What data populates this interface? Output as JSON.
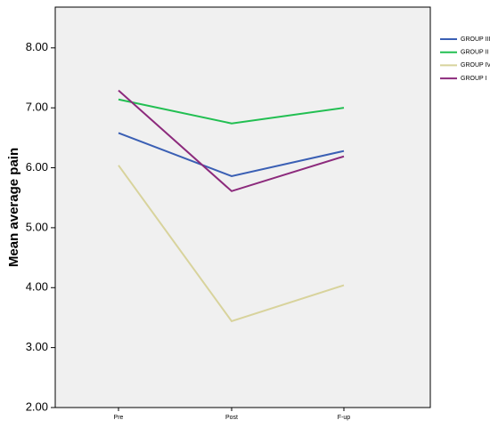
{
  "chart_data": {
    "type": "line",
    "y_label": "Mean average pain",
    "categories": [
      "Pre",
      "Post",
      "F-up"
    ],
    "series": [
      {
        "name": "GROUP III",
        "color": "#3a5fb4",
        "values": [
          6.58,
          5.86,
          6.28
        ]
      },
      {
        "name": "GROUP II",
        "color": "#22bf52",
        "values": [
          7.14,
          6.74,
          7.0
        ]
      },
      {
        "name": "GROUP IV",
        "color": "#d8d39c",
        "values": [
          6.04,
          3.44,
          4.04
        ]
      },
      {
        "name": "GROUP I",
        "color": "#8c2a7c",
        "values": [
          7.29,
          5.61,
          6.19
        ]
      }
    ],
    "ylim": [
      2,
      8.68
    ],
    "yticks": [
      {
        "value": 2,
        "label": "2.00"
      },
      {
        "value": 3,
        "label": "3.00"
      },
      {
        "value": 4,
        "label": "4.00"
      },
      {
        "value": 5,
        "label": "5.00"
      },
      {
        "value": 6,
        "label": "6.00"
      },
      {
        "value": 7,
        "label": "7.00"
      },
      {
        "value": 8,
        "label": "8.00"
      }
    ],
    "grid": false
  }
}
